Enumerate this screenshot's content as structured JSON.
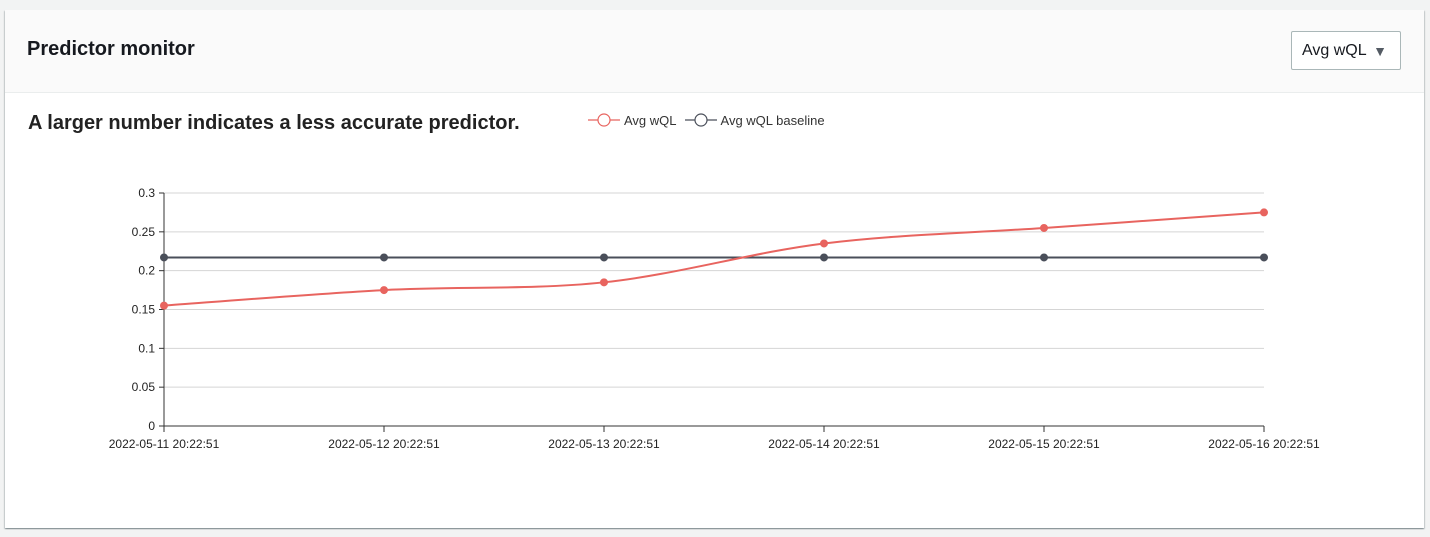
{
  "header": {
    "title": "Predictor monitor",
    "metric_select": {
      "value": "Avg wQL",
      "caret": "▼"
    }
  },
  "chart_data": {
    "type": "line",
    "title": "A larger number indicates a less accurate predictor.",
    "xlabel": "",
    "ylabel": "",
    "x": [
      "2022-05-11 20:22:51",
      "2022-05-12 20:22:51",
      "2022-05-13 20:22:51",
      "2022-05-14 20:22:51",
      "2022-05-15 20:22:51",
      "2022-05-16 20:22:51"
    ],
    "ylim": [
      0,
      0.3
    ],
    "yticks": [
      0,
      0.05,
      0.1,
      0.15,
      0.2,
      0.25,
      0.3
    ],
    "ytick_labels": [
      "0",
      "0.05",
      "0.1",
      "0.15",
      "0.2",
      "0.25",
      "0.3"
    ],
    "grid": true,
    "legend_position": "top",
    "series": [
      {
        "name": "Avg wQL",
        "color": "#e8645f",
        "smooth": true,
        "values": [
          0.155,
          0.175,
          0.185,
          0.235,
          0.255,
          0.275
        ]
      },
      {
        "name": "Avg wQL baseline",
        "color": "#4a4f5a",
        "smooth": false,
        "values": [
          0.217,
          0.217,
          0.217,
          0.217,
          0.217,
          0.217
        ]
      }
    ]
  }
}
